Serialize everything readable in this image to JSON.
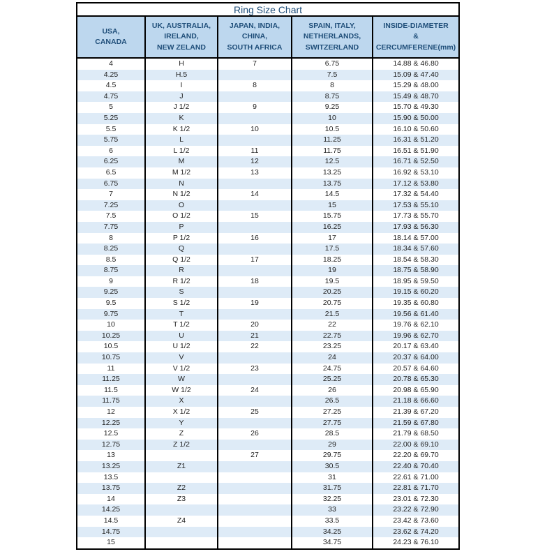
{
  "chart_data": {
    "type": "table",
    "title": "Ring Size Chart",
    "columns": [
      "USA,\nCANADA",
      "UK, AUSTRALIA,\nIRELAND,\nNEW ZELAND",
      "JAPAN, INDIA,\nCHINA,\nSOUTH AFRICA",
      "SPAIN, ITALY,\nNETHERLANDS,\nSWITZERLAND",
      "INSIDE-DIAMETER\n&\nCERCUMFERENE(mm)"
    ],
    "rows": [
      [
        "4",
        "H",
        "7",
        "6.75",
        "14.88 & 46.80"
      ],
      [
        "4.25",
        "H.5",
        "",
        "7.5",
        "15.09 & 47.40"
      ],
      [
        "4.5",
        "I",
        "8",
        "8",
        "15.29 & 48.00"
      ],
      [
        "4.75",
        "J",
        "",
        "8.75",
        "15.49 & 48.70"
      ],
      [
        "5",
        "J 1/2",
        "9",
        "9.25",
        "15.70 & 49.30"
      ],
      [
        "5.25",
        "K",
        "",
        "10",
        "15.90 & 50.00"
      ],
      [
        "5.5",
        "K 1/2",
        "10",
        "10.5",
        "16.10 & 50.60"
      ],
      [
        "5.75",
        "L",
        "",
        "11.25",
        "16.31 & 51.20"
      ],
      [
        "6",
        "L 1/2",
        "11",
        "11.75",
        "16.51 & 51.90"
      ],
      [
        "6.25",
        "M",
        "12",
        "12.5",
        "16.71 & 52.50"
      ],
      [
        "6.5",
        "M 1/2",
        "13",
        "13.25",
        "16.92 & 53.10"
      ],
      [
        "6.75",
        "N",
        "",
        "13.75",
        "17.12 & 53.80"
      ],
      [
        "7",
        "N 1/2",
        "14",
        "14.5",
        "17.32 & 54.40"
      ],
      [
        "7.25",
        "O",
        "",
        "15",
        "17.53 & 55.10"
      ],
      [
        "7.5",
        "O 1/2",
        "15",
        "15.75",
        "17.73 & 55.70"
      ],
      [
        "7.75",
        "P",
        "",
        "16.25",
        "17.93 & 56.30"
      ],
      [
        "8",
        "P 1/2",
        "16",
        "17",
        "18.14 & 57.00"
      ],
      [
        "8.25",
        "Q",
        "",
        "17.5",
        "18.34 & 57.60"
      ],
      [
        "8.5",
        "Q 1/2",
        "17",
        "18.25",
        "18.54 & 58.30"
      ],
      [
        "8.75",
        "R",
        "",
        "19",
        "18.75 & 58.90"
      ],
      [
        "9",
        "R 1/2",
        "18",
        "19.5",
        "18.95 & 59.50"
      ],
      [
        "9.25",
        "S",
        "",
        "20.25",
        "19.15 & 60.20"
      ],
      [
        "9.5",
        "S 1/2",
        "19",
        "20.75",
        "19.35 & 60.80"
      ],
      [
        "9.75",
        "T",
        "",
        "21.5",
        "19.56 & 61.40"
      ],
      [
        "10",
        "T 1/2",
        "20",
        "22",
        "19.76 & 62.10"
      ],
      [
        "10.25",
        "U",
        "21",
        "22.75",
        "19.96 & 62.70"
      ],
      [
        "10.5",
        "U 1/2",
        "22",
        "23.25",
        "20.17 & 63.40"
      ],
      [
        "10.75",
        "V",
        "",
        "24",
        "20.37 & 64.00"
      ],
      [
        "11",
        "V 1/2",
        "23",
        "24.75",
        "20.57 & 64.60"
      ],
      [
        "11.25",
        "W",
        "",
        "25.25",
        "20.78 & 65.30"
      ],
      [
        "11.5",
        "W 1/2",
        "24",
        "26",
        "20.98 & 65.90"
      ],
      [
        "11.75",
        "X",
        "",
        "26.5",
        "21.18 & 66.60"
      ],
      [
        "12",
        "X 1/2",
        "25",
        "27.25",
        "21.39 & 67.20"
      ],
      [
        "12.25",
        "Y",
        "",
        "27.75",
        "21.59 & 67.80"
      ],
      [
        "12.5",
        "Z",
        "26",
        "28.5",
        "21.79 & 68.50"
      ],
      [
        "12.75",
        "Z 1/2",
        "",
        "29",
        "22.00 & 69.10"
      ],
      [
        "13",
        "",
        "27",
        "29.75",
        "22.20 & 69.70"
      ],
      [
        "13.25",
        "Z1",
        "",
        "30.5",
        "22.40 & 70.40"
      ],
      [
        "13.5",
        "",
        "",
        "31",
        "22.61 & 71.00"
      ],
      [
        "13.75",
        "Z2",
        "",
        "31.75",
        "22.81 & 71.70"
      ],
      [
        "14",
        "Z3",
        "",
        "32.25",
        "23.01 & 72.30"
      ],
      [
        "14.25",
        "",
        "",
        "33",
        "23.22 & 72.90"
      ],
      [
        "14.5",
        "Z4",
        "",
        "33.5",
        "23.42 & 73.60"
      ],
      [
        "14.75",
        "",
        "",
        "34.25",
        "23.62 & 74.20"
      ],
      [
        "15",
        "",
        "",
        "34.75",
        "24.23 & 76.10"
      ]
    ],
    "colors": {
      "header_bg": "#BDD7EE",
      "header_text": "#1F4E79",
      "stripe_bg": "#DEEBF7",
      "border": "#000000",
      "data_text": "#1F1F1F"
    }
  }
}
